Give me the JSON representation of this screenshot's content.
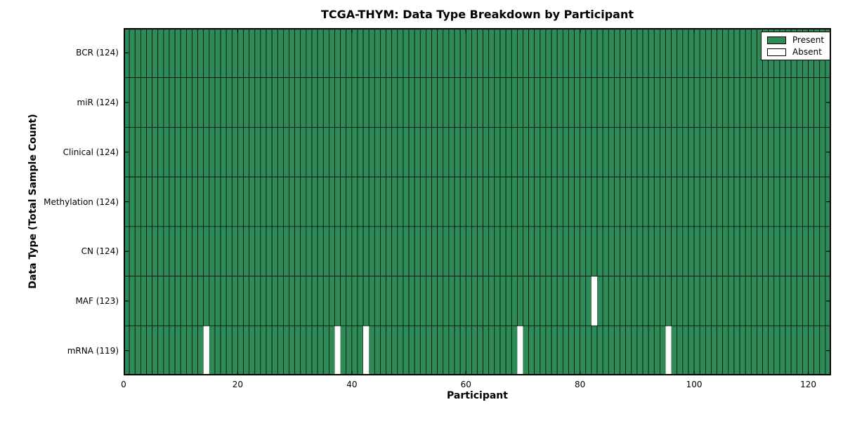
{
  "figure": {
    "title": "TCGA-THYM: Data Type Breakdown by Participant",
    "xlabel": "Participant",
    "ylabel": "Data Type (Total Sample Count)"
  },
  "legend": {
    "items": [
      {
        "label": "Present",
        "color": "#2e8b57"
      },
      {
        "label": "Absent",
        "color": "#ffffff"
      }
    ]
  },
  "chart_data": {
    "type": "heatmap",
    "title": "TCGA-THYM: Data Type Breakdown by Participant",
    "xlabel": "Participant",
    "ylabel": "Data Type (Total Sample Count)",
    "n_participants": 124,
    "xlim": [
      0,
      124
    ],
    "x_ticks": [
      0,
      20,
      40,
      60,
      80,
      100,
      120
    ],
    "rows": [
      {
        "name": "BCR",
        "label": "BCR (124)",
        "total": 124,
        "absent_participants": []
      },
      {
        "name": "miR",
        "label": "miR (124)",
        "total": 124,
        "absent_participants": []
      },
      {
        "name": "Clinical",
        "label": "Clinical (124)",
        "total": 124,
        "absent_participants": []
      },
      {
        "name": "Methylation",
        "label": "Methylation (124)",
        "total": 124,
        "absent_participants": []
      },
      {
        "name": "CN",
        "label": "CN (124)",
        "total": 124,
        "absent_participants": []
      },
      {
        "name": "MAF",
        "label": "MAF (123)",
        "total": 123,
        "absent_participants": [
          82
        ]
      },
      {
        "name": "mRNA",
        "label": "mRNA (119)",
        "total": 119,
        "absent_participants": [
          14,
          37,
          42,
          69,
          95
        ]
      }
    ],
    "colors": {
      "present": "#2e8b57",
      "absent": "#ffffff",
      "cell_edge": "#000000",
      "frame": "#000000",
      "background": "#ffffff"
    },
    "legend_entries": [
      "Present",
      "Absent"
    ],
    "legend_position": "upper right",
    "grid": false,
    "cell_value_semantics": "1 = data type present for participant, 0 = absent"
  }
}
